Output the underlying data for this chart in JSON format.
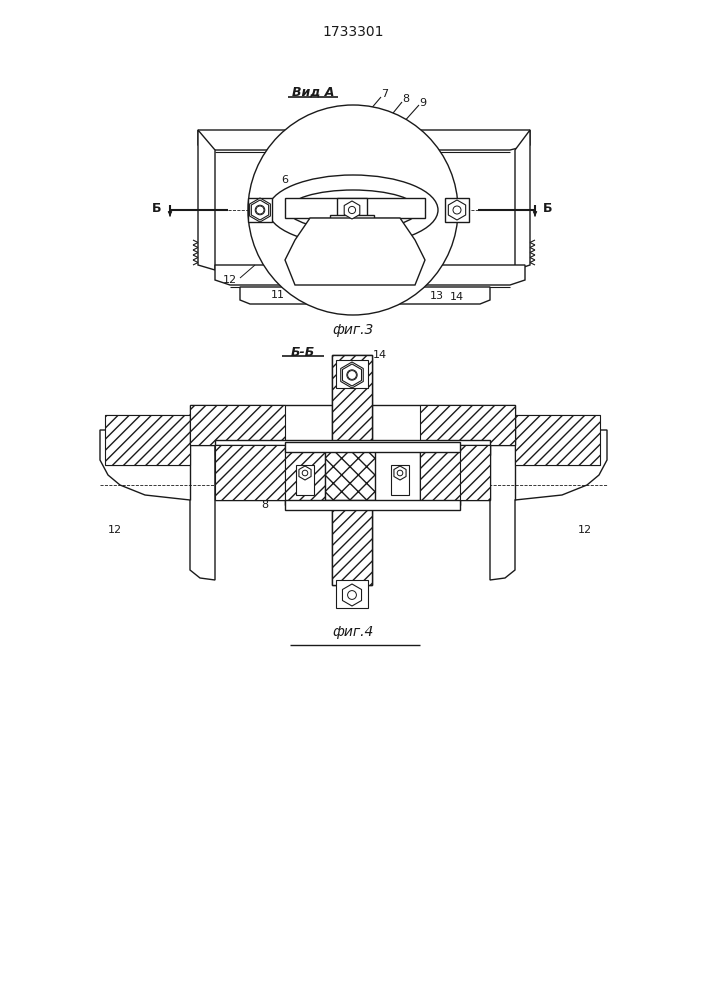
{
  "patent_number": "1733301",
  "fig3_label": "фиг.3",
  "fig4_label": "фиг.4",
  "vid_label": "Вид А",
  "section_label": "Б-Б",
  "line_color": "#1a1a1a",
  "fig_width": 7.07,
  "fig_height": 10.0,
  "dpi": 100
}
